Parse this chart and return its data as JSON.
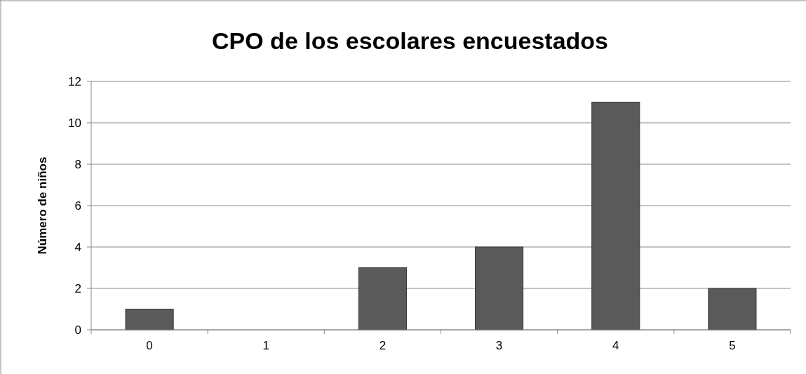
{
  "chart_data": {
    "type": "bar",
    "title": "CPO de los escolares encuestados",
    "ylabel": "Número de niños",
    "categories": [
      "0",
      "1",
      "2",
      "3",
      "4",
      "5"
    ],
    "values": [
      1,
      0,
      3,
      4,
      11,
      2
    ],
    "color": "#5a5a5a",
    "ylim": [
      0,
      12
    ],
    "yticks": [
      0,
      2,
      4,
      6,
      8,
      10,
      12
    ],
    "grid": "y"
  }
}
